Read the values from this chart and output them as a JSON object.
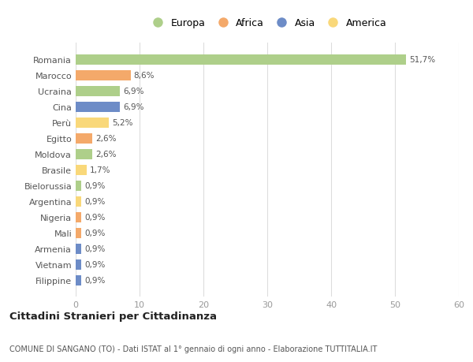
{
  "categories": [
    "Romania",
    "Marocco",
    "Ucraina",
    "Cina",
    "Perù",
    "Egitto",
    "Moldova",
    "Brasile",
    "Bielorussia",
    "Argentina",
    "Nigeria",
    "Mali",
    "Armenia",
    "Vietnam",
    "Filippine"
  ],
  "values": [
    51.7,
    8.6,
    6.9,
    6.9,
    5.2,
    2.6,
    2.6,
    1.7,
    0.9,
    0.9,
    0.9,
    0.9,
    0.9,
    0.9,
    0.9
  ],
  "labels": [
    "51,7%",
    "8,6%",
    "6,9%",
    "6,9%",
    "5,2%",
    "2,6%",
    "2,6%",
    "1,7%",
    "0,9%",
    "0,9%",
    "0,9%",
    "0,9%",
    "0,9%",
    "0,9%",
    "0,9%"
  ],
  "colors": [
    "#aecf8a",
    "#f4a96a",
    "#aecf8a",
    "#6d8cc7",
    "#f9d87a",
    "#f4a96a",
    "#aecf8a",
    "#f9d87a",
    "#aecf8a",
    "#f9d87a",
    "#f4a96a",
    "#f4a96a",
    "#6d8cc7",
    "#6d8cc7",
    "#6d8cc7"
  ],
  "legend": [
    {
      "label": "Europa",
      "color": "#aecf8a"
    },
    {
      "label": "Africa",
      "color": "#f4a96a"
    },
    {
      "label": "Asia",
      "color": "#6d8cc7"
    },
    {
      "label": "America",
      "color": "#f9d87a"
    }
  ],
  "xlim": [
    0,
    60
  ],
  "xticks": [
    0,
    10,
    20,
    30,
    40,
    50,
    60
  ],
  "title": "Cittadini Stranieri per Cittadinanza",
  "subtitle": "COMUNE DI SANGANO (TO) - Dati ISTAT al 1° gennaio di ogni anno - Elaborazione TUTTITALIA.IT",
  "background_color": "#ffffff",
  "grid_color": "#dddddd",
  "bar_label_color": "#555555",
  "ytick_color": "#555555",
  "xtick_color": "#999999"
}
